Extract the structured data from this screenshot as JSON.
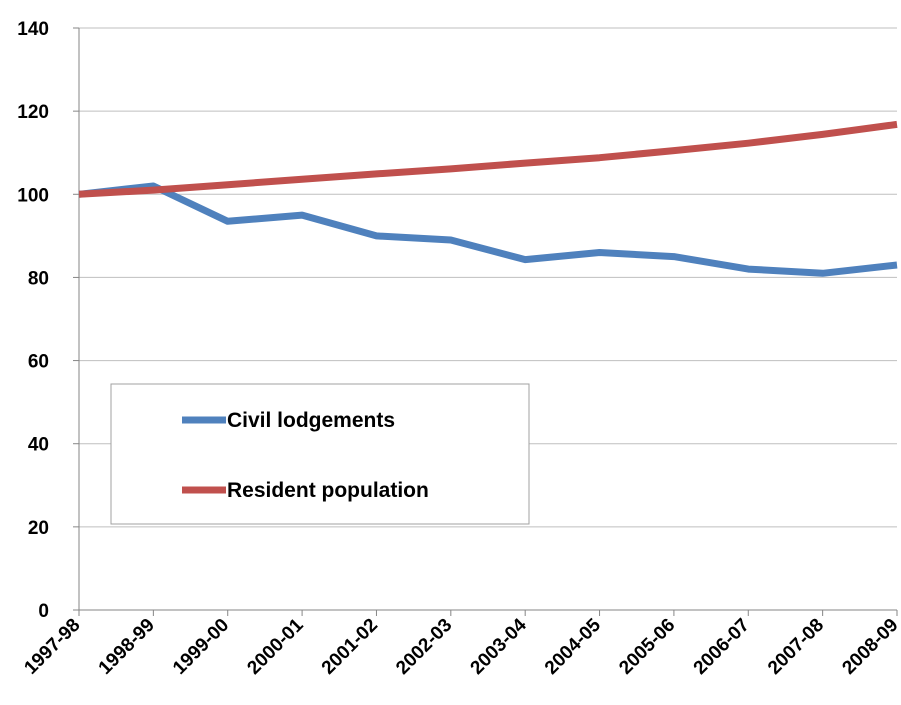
{
  "chart_data": {
    "type": "line",
    "categories": [
      "1997-98",
      "1998-99",
      "1999-00",
      "2000-01",
      "2001-02",
      "2002-03",
      "2003-04",
      "2004-05",
      "2005-06",
      "2006-07",
      "2007-08",
      "2008-09"
    ],
    "series": [
      {
        "name": "Civil lodgements",
        "values": [
          100,
          102,
          93.5,
          95,
          90,
          89,
          84.3,
          86,
          85,
          82,
          81,
          83
        ],
        "color": "#4f81bd"
      },
      {
        "name": "Resident population",
        "values": [
          100,
          101,
          102.3,
          103.6,
          104.9,
          106.1,
          107.5,
          108.8,
          110.5,
          112.3,
          114.4,
          116.8
        ],
        "color": "#c0504d"
      }
    ],
    "ylim": [
      0,
      140
    ],
    "yticks": [
      0,
      20,
      40,
      60,
      80,
      100,
      120,
      140
    ],
    "grid": true,
    "legend": "bottom-left",
    "title": "",
    "xlabel": "",
    "ylabel": ""
  }
}
